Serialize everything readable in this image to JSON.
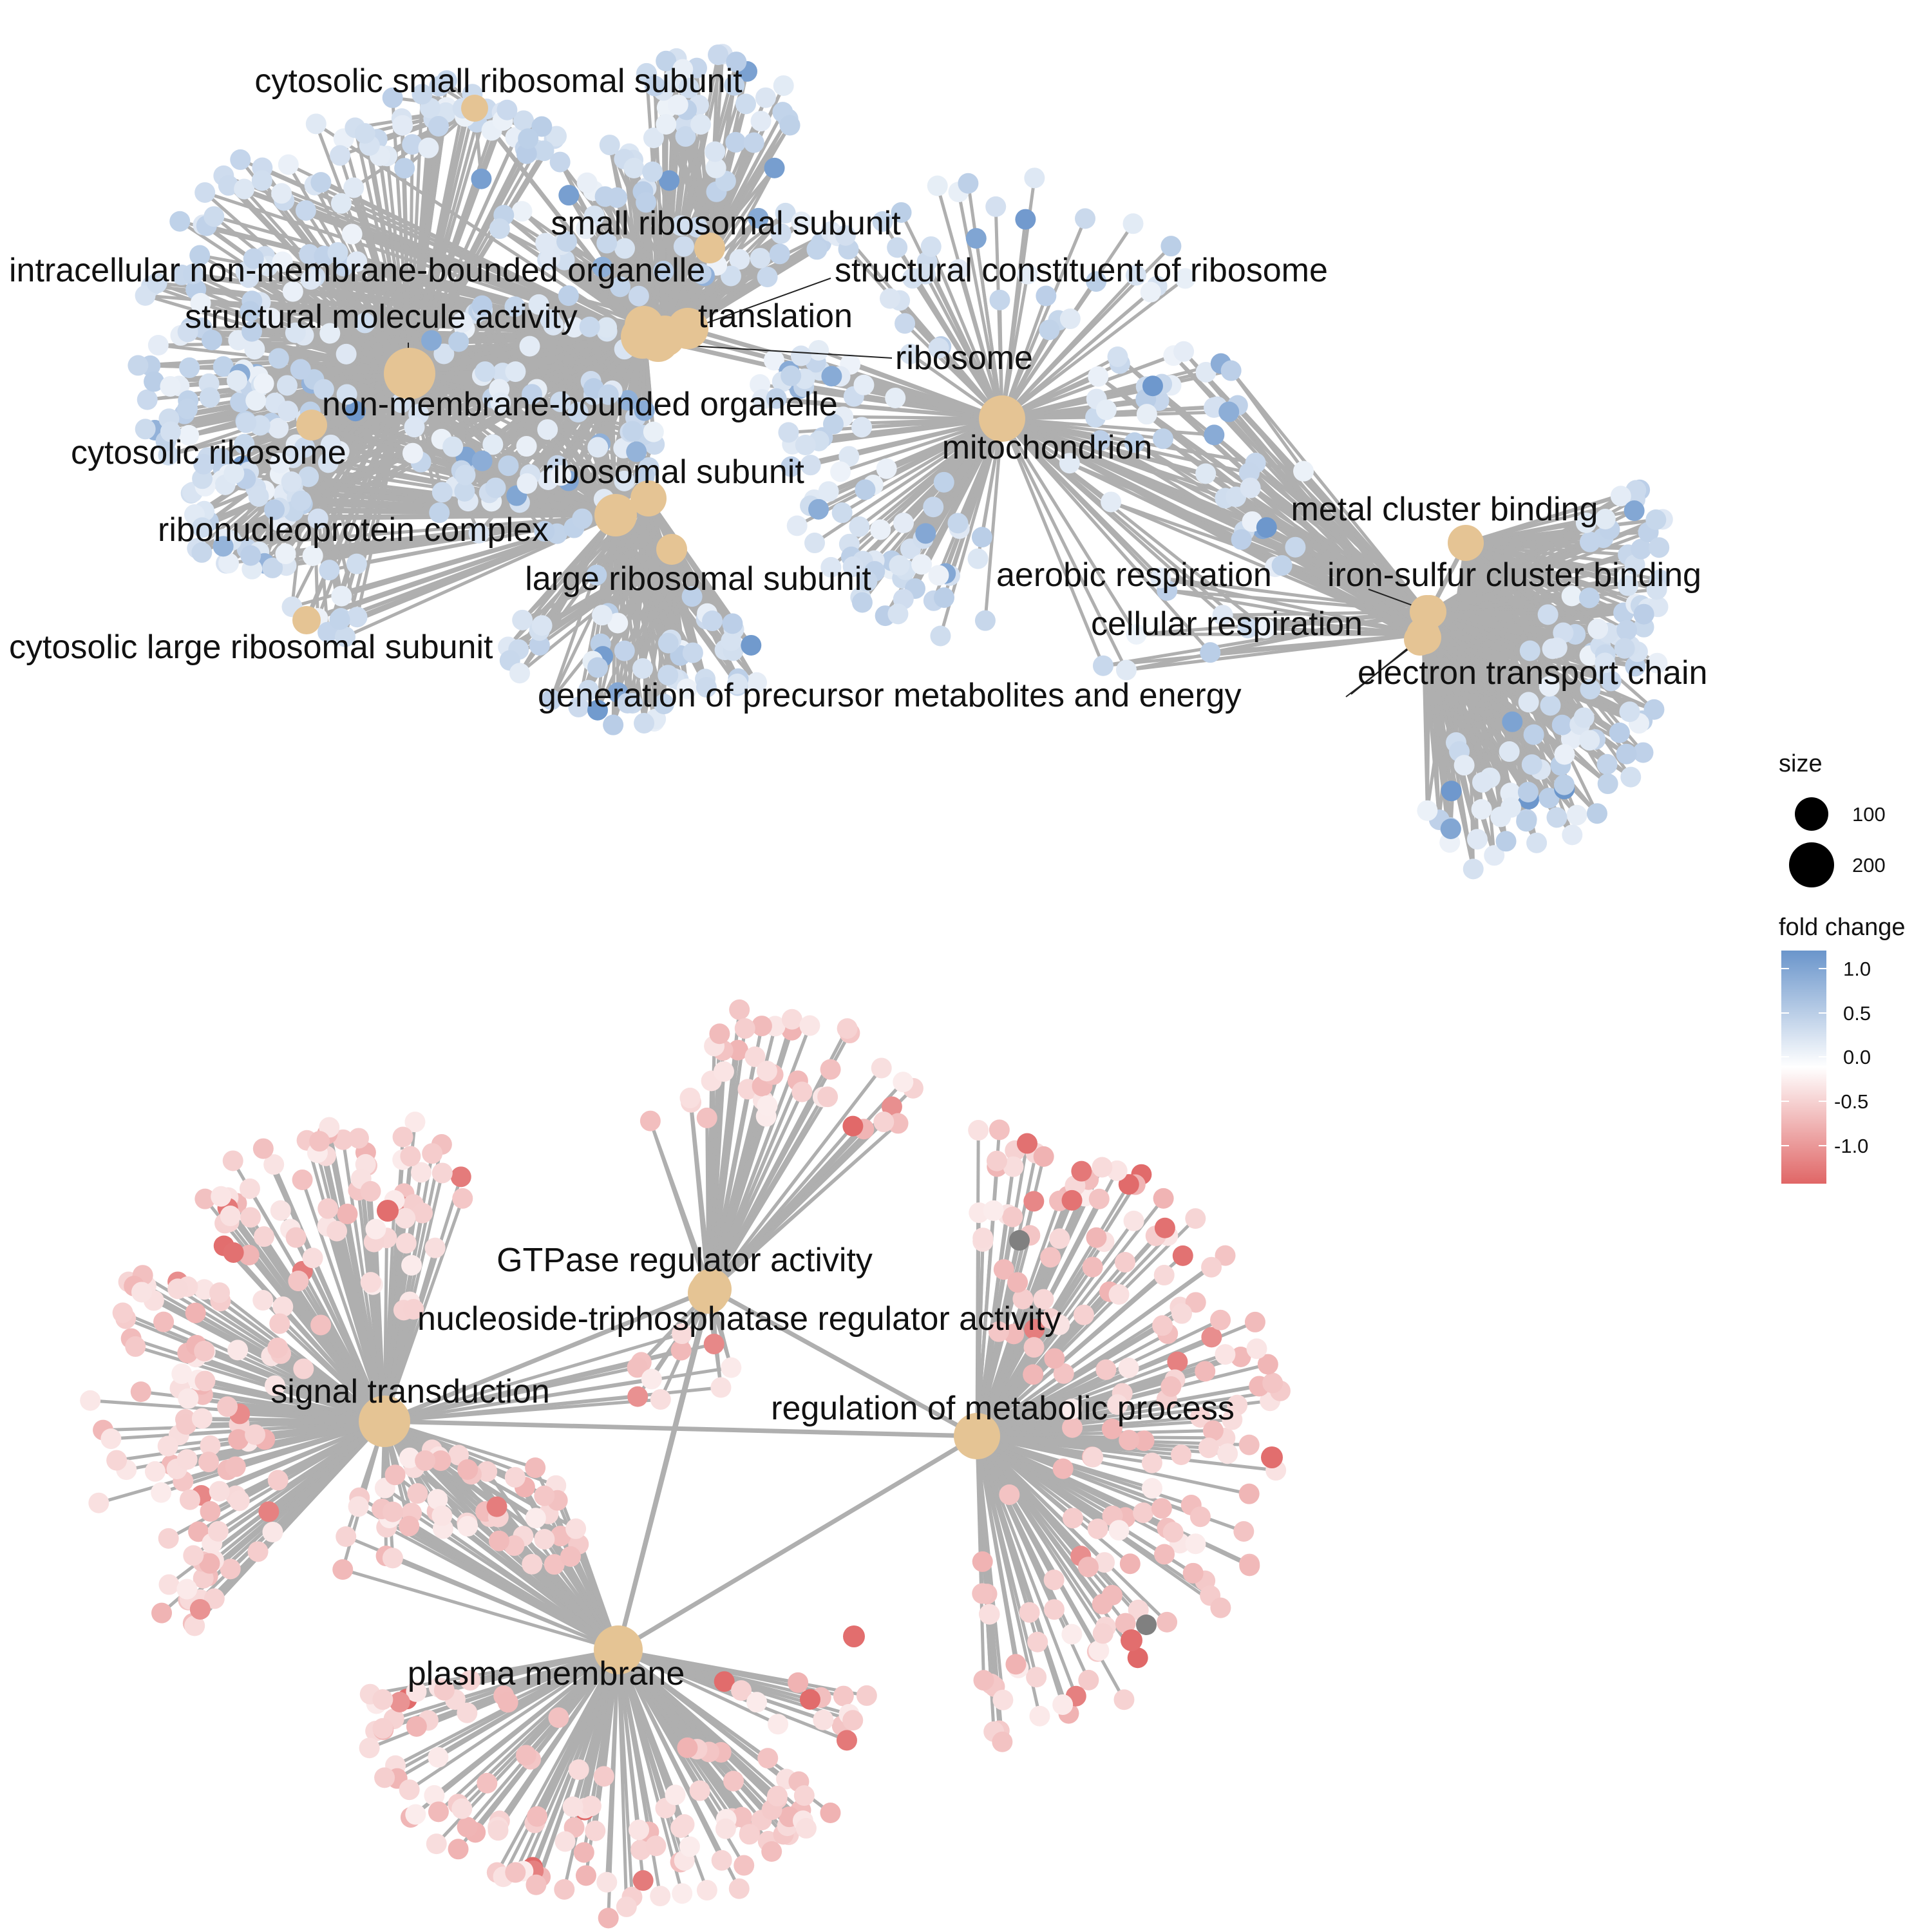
{
  "colors": {
    "term_node": "#E5C494",
    "edge": "#AFAFAF",
    "leader": "#222222",
    "na_gene": "#808080",
    "high": "#6A95CB",
    "mid": "#FFFFFF",
    "low": "#E06666"
  },
  "clusters": [
    {
      "name": "upper",
      "terms": [
        {
          "id": "cssu",
          "label": "cytosolic small ribosomal subunit"
        },
        {
          "id": "ssu",
          "label": "small ribosomal subunit"
        },
        {
          "id": "inmbo",
          "label": "intracellular non-membrane-bounded organelle"
        },
        {
          "id": "scr",
          "label": "structural constituent of ribosome"
        },
        {
          "id": "sma",
          "label": "structural molecule activity"
        },
        {
          "id": "trans",
          "label": "translation"
        },
        {
          "id": "ribo",
          "label": "ribosome"
        },
        {
          "id": "nmbo",
          "label": "non-membrane-bounded organelle"
        },
        {
          "id": "cribo",
          "label": "cytosolic ribosome"
        },
        {
          "id": "rsub",
          "label": "ribosomal subunit"
        },
        {
          "id": "rnp",
          "label": "ribonucleoprotein complex"
        },
        {
          "id": "lsu",
          "label": "large ribosomal subunit"
        },
        {
          "id": "clsu",
          "label": "cytosolic large ribosomal subunit"
        },
        {
          "id": "gpme",
          "label": "generation of precursor metabolites and energy"
        },
        {
          "id": "mito",
          "label": "mitochondrion"
        },
        {
          "id": "mcb",
          "label": "metal cluster binding"
        },
        {
          "id": "aer",
          "label": "aerobic respiration"
        },
        {
          "id": "iscb",
          "label": "iron-sulfur cluster binding"
        },
        {
          "id": "cresp",
          "label": "cellular respiration"
        },
        {
          "id": "etc",
          "label": "electron transport chain"
        }
      ]
    },
    {
      "name": "lower",
      "terms": [
        {
          "id": "gtp",
          "label": "GTPase regulator activity"
        },
        {
          "id": "ntp",
          "label": "nucleoside-triphosphatase regulator activity"
        },
        {
          "id": "sig",
          "label": "signal transduction"
        },
        {
          "id": "rmp",
          "label": "regulation of metabolic process"
        },
        {
          "id": "pm",
          "label": "plasma membrane"
        }
      ]
    }
  ],
  "legend": {
    "size_title": "size",
    "size_items": [
      "100",
      "200"
    ],
    "color_title": "fold change",
    "color_ticks": [
      "1.0",
      "0.5",
      "0.0",
      "-0.5",
      "-1.0"
    ]
  }
}
